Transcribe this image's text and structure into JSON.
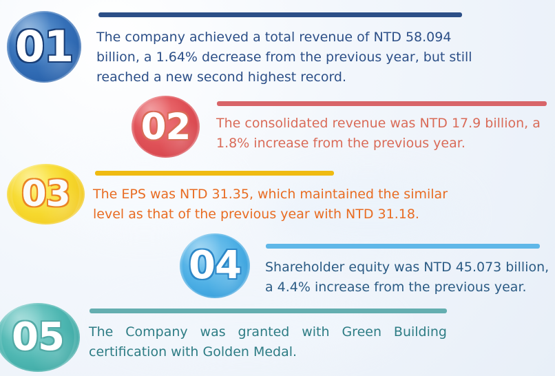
{
  "colors": {
    "item1": "#2C4F87",
    "item2": "#D96B58",
    "item3": "#E86C22",
    "item4": "#2B5B84",
    "item5": "#2D7C84"
  },
  "items": [
    {
      "badge": "01",
      "text": "The company achieved a total revenue of NTD 58.094 billion, a 1.64% decrease from the previous year, but still reached a new second highest record."
    },
    {
      "badge": "02",
      "text": "The consolidated revenue was NTD 17.9 billion, a 1.8% increase from the previous year."
    },
    {
      "badge": "03",
      "text": "The EPS was NTD 31.35, which maintained the similar level as that of the previous year with NTD 31.18."
    },
    {
      "badge": "04",
      "text": "Shareholder equity was NTD 45.073 billion, a 4.4% increase from the previous year."
    },
    {
      "badge": "05",
      "text": "The Company was granted with Green Building certification with Golden Medal."
    }
  ]
}
